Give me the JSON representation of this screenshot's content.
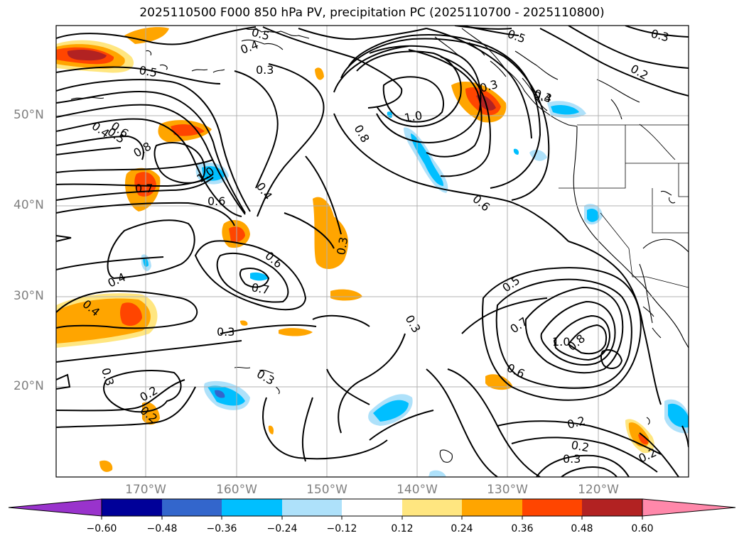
{
  "title": "2025110500 F000 850 hPa PV, precipitation PC (2025110700 - 2025110800)",
  "lat_labels": [
    "50°N",
    "40°N",
    "30°N",
    "20°N"
  ],
  "lon_labels": [
    "170°W",
    "160°W",
    "150°W",
    "140°W",
    "130°W",
    "120°W"
  ],
  "colorbar": {
    "tick_labels": [
      "−0.60",
      "−0.48",
      "−0.36",
      "−0.24",
      "−0.12",
      "0.12",
      "0.24",
      "0.36",
      "0.48",
      "0.60"
    ],
    "colors": [
      "#9933cc",
      "#000099",
      "#3366cc",
      "#00bfff",
      "#aee1fa",
      "#ffffff",
      "#ffe680",
      "#ffa500",
      "#ff4500",
      "#b22222",
      "#ff88aa"
    ]
  },
  "contour_labels": [
    "0.5",
    "0.4",
    "0.3",
    "0.5",
    "0.3",
    "0.2",
    "0.5",
    "0.4",
    "0.6",
    "0.5",
    "0.8",
    "1.0",
    "0.7",
    "0.6",
    "0.4",
    "0.6",
    "0.7",
    "0.4",
    "0.4",
    "0.3",
    "0.3",
    "0.3",
    "0.3",
    "0.2",
    "0.2",
    "1.0",
    "0.8",
    "0.3",
    "0.6",
    "0.3",
    "0.5",
    "0.7",
    "1.0",
    "0.8",
    "0.6",
    "0.2",
    "0.2",
    "0.3",
    "0.2",
    "0.3",
    "0.4"
  ]
}
